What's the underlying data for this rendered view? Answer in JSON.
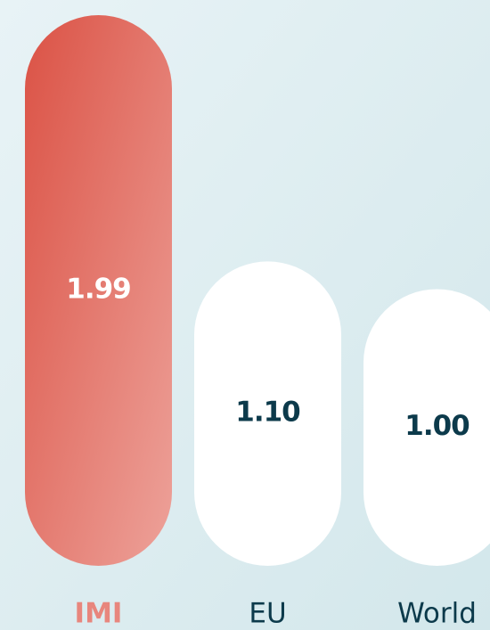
{
  "chart_data": {
    "type": "bar",
    "categories": [
      "IMI",
      "EU",
      "World"
    ],
    "values": [
      1.99,
      1.1,
      1.0
    ],
    "value_labels": [
      "1.99",
      "1.10",
      "1.00"
    ],
    "colors": [
      "#e0594c",
      "#ffffff",
      "#ffffff"
    ]
  }
}
